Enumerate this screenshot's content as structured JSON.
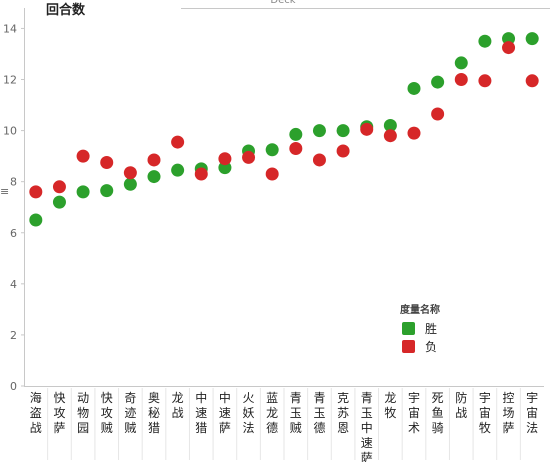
{
  "chart_data": {
    "type": "scatter",
    "title": "",
    "xlabel": "Deck",
    "ylabel": "回合数",
    "ylim": [
      0,
      14.8
    ],
    "yticks": [
      0,
      2,
      4,
      6,
      8,
      10,
      12,
      14
    ],
    "grid": false,
    "legend_position": "bottom-right",
    "legend_title": "度量名称",
    "categories": [
      "海盗战",
      "快攻萨",
      "动物园",
      "快攻贼",
      "奇迹贼",
      "奥秘猎",
      "龙战",
      "中速猎",
      "中速萨",
      "火妖法",
      "蓝龙德",
      "青玉贼",
      "青玉德",
      "克苏恩",
      "青玉中速萨",
      "龙牧",
      "宇宙术",
      "死鱼骑",
      "防战",
      "宇宙牧",
      "控场萨",
      "宇宙法"
    ],
    "series": [
      {
        "name": "胜",
        "color": "#2ca02c",
        "values": [
          6.5,
          7.2,
          7.6,
          7.65,
          7.9,
          8.2,
          8.45,
          8.5,
          8.55,
          9.2,
          9.25,
          9.85,
          10.0,
          10.0,
          10.15,
          10.2,
          11.65,
          11.9,
          12.65,
          13.5,
          13.6,
          13.6
        ]
      },
      {
        "name": "负",
        "color": "#d62728",
        "values": [
          7.6,
          7.8,
          9.0,
          8.75,
          8.35,
          8.85,
          9.55,
          8.3,
          8.9,
          8.95,
          8.3,
          9.3,
          8.85,
          9.2,
          10.05,
          9.8,
          9.9,
          10.65,
          12.0,
          11.95,
          13.25,
          11.95
        ]
      }
    ]
  }
}
